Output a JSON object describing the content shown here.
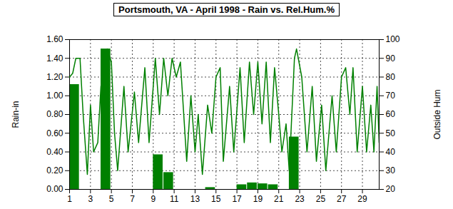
{
  "chart_data": {
    "type": "bar",
    "title": "Portsmouth, VA - April 1998 - Rain vs. Rel.Hum.%",
    "xlim": [
      1,
      30.6
    ],
    "xticks": [
      1,
      3,
      5,
      7,
      9,
      11,
      13,
      15,
      17,
      19,
      21,
      23,
      25,
      27,
      29
    ],
    "ylim": [
      0,
      1.6
    ],
    "yticks": [
      {
        "value": 0,
        "label": "0.00"
      },
      {
        "value": 0.2,
        "label": "0.20"
      },
      {
        "value": 0.4,
        "label": "0.40"
      },
      {
        "value": 0.6,
        "label": "0.60"
      },
      {
        "value": 0.8,
        "label": "0.80"
      },
      {
        "value": 1.0,
        "label": "1.00"
      },
      {
        "value": 1.2,
        "label": "1.20"
      },
      {
        "value": 1.4,
        "label": "1.40"
      },
      {
        "value": 1.6,
        "label": "1.60"
      }
    ],
    "y2lim": [
      20,
      100
    ],
    "y2ticks": [
      20,
      30,
      40,
      50,
      60,
      70,
      80,
      90,
      100
    ],
    "grid": true,
    "series": [
      {
        "name": "Rain-in",
        "type": "bar",
        "color": "#008000",
        "x": [
          1,
          4,
          9,
          10,
          14,
          17,
          18,
          19,
          20,
          22
        ],
        "values": [
          1.12,
          1.5,
          0.37,
          0.18,
          0.02,
          0.05,
          0.07,
          0.06,
          0.05,
          0.56
        ]
      },
      {
        "name": "Outside Hum",
        "type": "line",
        "axis": "y2",
        "color": "#008000",
        "x": [
          1,
          1.3,
          1.6,
          2.0,
          2.3,
          2.7,
          3.0,
          3.3,
          3.7,
          4.0,
          4.3,
          4.6,
          5.0,
          5.3,
          5.6,
          6.2,
          6.6,
          7.2,
          7.6,
          8.2,
          8.6,
          9.2,
          9.6,
          10.0,
          10.4,
          10.8,
          11.2,
          11.6,
          12.2,
          12.6,
          13.0,
          13.3,
          13.7,
          14.2,
          14.6,
          15.0,
          15.4,
          15.7,
          16.3,
          16.7,
          17.3,
          17.7,
          18.2,
          18.6,
          19.0,
          19.4,
          19.8,
          20.2,
          20.6,
          21.0,
          21.3,
          21.7,
          22.0,
          22.5,
          22.7,
          23.2,
          23.7,
          24.2,
          24.6,
          25.1,
          25.5,
          26.1,
          26.5,
          27.0,
          27.4,
          27.8,
          28.1,
          28.5,
          29.0,
          29.4,
          29.8,
          30.1,
          30.4,
          30.6
        ],
        "values": [
          80,
          82,
          90,
          90,
          60,
          28,
          65,
          40,
          45,
          75,
          85,
          95,
          88,
          50,
          30,
          75,
          40,
          72,
          45,
          85,
          45,
          90,
          60,
          90,
          70,
          90,
          80,
          88,
          35,
          70,
          40,
          60,
          28,
          65,
          50,
          80,
          85,
          35,
          75,
          40,
          85,
          45,
          88,
          60,
          88,
          55,
          88,
          45,
          85,
          60,
          40,
          55,
          30,
          90,
          95,
          80,
          40,
          75,
          35,
          65,
          30,
          70,
          40,
          80,
          85,
          60,
          85,
          40,
          75,
          40,
          65,
          40,
          75,
          45
        ]
      }
    ]
  }
}
